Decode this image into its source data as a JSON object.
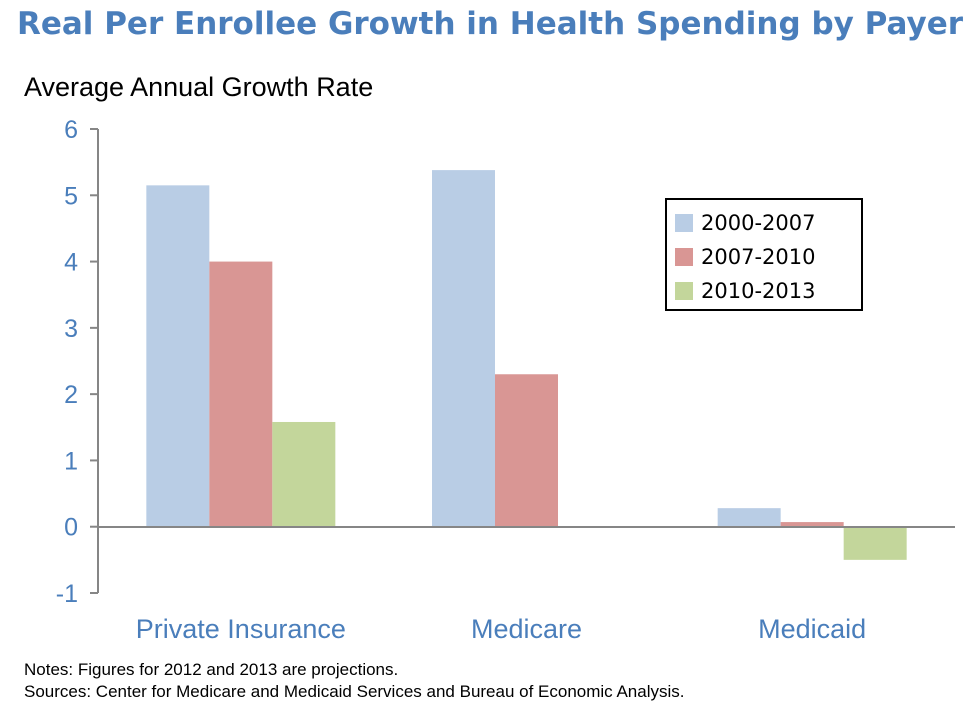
{
  "chart_data": {
    "type": "bar",
    "title": "Real Per Enrollee Growth in Health Spending by Payer",
    "ylabel": "Average Annual Growth Rate",
    "xlabel": "",
    "categories": [
      "Private Insurance",
      "Medicare",
      "Medicaid"
    ],
    "series": [
      {
        "name": "2000-2007",
        "color": "#b9cde5",
        "values": [
          5.15,
          5.38,
          0.28
        ]
      },
      {
        "name": "2007-2010",
        "color": "#d99694",
        "values": [
          4.0,
          2.3,
          0.07
        ]
      },
      {
        "name": "2010-2013",
        "color": "#c3d69b",
        "values": [
          1.58,
          null,
          -0.5
        ]
      }
    ],
    "ylim": [
      -1,
      6
    ],
    "yticks": [
      6,
      5,
      4,
      3,
      2,
      1,
      0,
      -1
    ],
    "ytick_labels": [
      "6",
      "5",
      "4",
      "3",
      "2",
      "1",
      "0",
      "-1"
    ],
    "grid": false,
    "legend_position": "right"
  },
  "notes": {
    "line1": "Notes: Figures for 2012 and 2013 are projections.",
    "line2": "Sources: Center for Medicare and Medicaid Services and Bureau of Economic Analysis."
  }
}
